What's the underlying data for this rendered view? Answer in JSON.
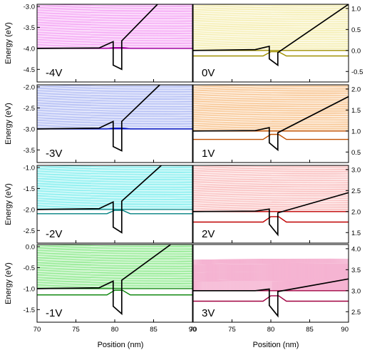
{
  "chart_data": {
    "type": "line",
    "layout": "4 rows x 2 columns, shared x axis",
    "xlabel": "Position (nm)",
    "ylabel": "Energy (eV)",
    "xlim": [
      70,
      90
    ],
    "x_ticks": [
      70,
      75,
      80,
      85,
      90
    ],
    "x_tick_labels": [
      "70",
      "75",
      "80",
      "85",
      "90"
    ],
    "grid": false,
    "panels": [
      {
        "label": "-4V",
        "voltage": -4,
        "ylim": [
          -4.8,
          -2.95
        ],
        "y_ticks": [
          -3.0,
          -3.5,
          -4.0,
          -4.5
        ],
        "y_tick_labels": [
          "-3.0",
          "-3.5",
          "-4.0",
          "-4.5"
        ],
        "fill_color": "#f07ef0",
        "lower_color": "#a000a0",
        "fermi_level": -4.0,
        "ladder_top": -2.95,
        "conduction_band": [
          [
            70,
            -4.0
          ],
          [
            78,
            -3.99
          ],
          [
            79.8,
            -3.84
          ],
          [
            79.8,
            -4.4
          ],
          [
            80.9,
            -4.5
          ],
          [
            80.9,
            -3.82
          ],
          [
            85.5,
            -2.95
          ]
        ],
        "lower_band": [
          [
            70,
            -4.0
          ],
          [
            79,
            -4.0
          ],
          [
            80,
            -3.98
          ],
          [
            81,
            -3.98
          ],
          [
            82,
            -4.0
          ],
          [
            90,
            -4.0
          ]
        ]
      },
      {
        "label": "-3V",
        "voltage": -3,
        "ylim": [
          -3.8,
          -1.95
        ],
        "y_ticks": [
          -2.0,
          -2.5,
          -3.0,
          -3.5
        ],
        "y_tick_labels": [
          "-2.0",
          "-2.5",
          "-3.0",
          "-3.5"
        ],
        "fill_color": "#8f9ff0",
        "lower_color": "#0010c0",
        "fermi_level": -3.0,
        "ladder_top": -1.95,
        "conduction_band": [
          [
            70,
            -3.0
          ],
          [
            78,
            -2.98
          ],
          [
            79.8,
            -2.82
          ],
          [
            79.8,
            -3.42
          ],
          [
            80.9,
            -3.52
          ],
          [
            80.9,
            -2.82
          ],
          [
            85.8,
            -1.95
          ]
        ],
        "lower_band": [
          [
            70,
            -3.0
          ],
          [
            79,
            -3.0
          ],
          [
            80,
            -2.98
          ],
          [
            81,
            -2.98
          ],
          [
            82,
            -3.0
          ],
          [
            90,
            -3.0
          ]
        ]
      },
      {
        "label": "-2V",
        "voltage": -2,
        "ylim": [
          -2.8,
          -0.95
        ],
        "y_ticks": [
          -1.0,
          -1.5,
          -2.0,
          -2.5
        ],
        "y_tick_labels": [
          "-1.0",
          "-1.5",
          "-2.0",
          "-2.5"
        ],
        "fill_color": "#4fe8e8",
        "lower_color": "#008080",
        "fermi_level": -2.0,
        "ladder_top": -0.95,
        "conduction_band": [
          [
            70,
            -2.0
          ],
          [
            78,
            -1.98
          ],
          [
            79.8,
            -1.82
          ],
          [
            79.8,
            -2.42
          ],
          [
            80.9,
            -2.55
          ],
          [
            80.9,
            -1.8
          ],
          [
            86.0,
            -0.95
          ]
        ],
        "lower_band": [
          [
            70,
            -2.1
          ],
          [
            79,
            -2.1
          ],
          [
            80,
            -2.02
          ],
          [
            81,
            -2.02
          ],
          [
            82,
            -2.1
          ],
          [
            90,
            -2.1
          ]
        ]
      },
      {
        "label": "-1V",
        "voltage": -1,
        "ylim": [
          -1.8,
          0.05
        ],
        "y_ticks": [
          0.0,
          -0.5,
          -1.0,
          -1.5
        ],
        "y_tick_labels": [
          "0.0",
          "-0.5",
          "-1.0",
          "-1.5"
        ],
        "fill_color": "#5ee05e",
        "lower_color": "#008000",
        "fermi_level": -1.0,
        "ladder_top": 0.05,
        "conduction_band": [
          [
            70,
            -1.0
          ],
          [
            78,
            -0.98
          ],
          [
            79.8,
            -0.82
          ],
          [
            79.8,
            -1.42
          ],
          [
            80.9,
            -1.6
          ],
          [
            80.9,
            -0.8
          ],
          [
            87.2,
            0.05
          ]
        ],
        "lower_band": [
          [
            70,
            -1.15
          ],
          [
            79,
            -1.15
          ],
          [
            80,
            -1.04
          ],
          [
            81,
            -1.04
          ],
          [
            82,
            -1.15
          ],
          [
            90,
            -1.15
          ]
        ]
      },
      {
        "label": "0V",
        "voltage": 0,
        "ylim": [
          -0.75,
          1.1
        ],
        "y_ticks": [
          1.0,
          0.5,
          0.0,
          -0.5
        ],
        "y_tick_labels": [
          "1.0",
          "0.5",
          "0.0",
          "-0.5"
        ],
        "fill_color": "#f0e58a",
        "lower_color": "#a09000",
        "fermi_level": 0.0,
        "ladder_top": 1.1,
        "conduction_band": [
          [
            70,
            0.0
          ],
          [
            78,
            0.02
          ],
          [
            79.8,
            0.1
          ],
          [
            79.8,
            -0.2
          ],
          [
            80.9,
            -0.35
          ],
          [
            80.9,
            -0.05
          ],
          [
            90,
            1.1
          ]
        ],
        "lower_band": [
          [
            70,
            -0.13
          ],
          [
            79,
            -0.13
          ],
          [
            80,
            -0.03
          ],
          [
            81,
            -0.03
          ],
          [
            82,
            -0.13
          ],
          [
            90,
            -0.13
          ]
        ]
      },
      {
        "label": "1V",
        "voltage": 1,
        "ylim": [
          0.25,
          2.1
        ],
        "y_ticks": [
          2.0,
          1.5,
          1.0,
          0.5
        ],
        "y_tick_labels": [
          "2.0",
          "1.5",
          "1.0",
          "0.5"
        ],
        "fill_color": "#f5a85a",
        "lower_color": "#c05000",
        "fermi_level": 1.0,
        "ladder_top": 2.1,
        "conduction_band": [
          [
            70,
            1.0
          ],
          [
            78,
            1.01
          ],
          [
            79.8,
            1.08
          ],
          [
            79.8,
            0.72
          ],
          [
            80.9,
            0.55
          ],
          [
            80.9,
            0.96
          ],
          [
            90,
            1.82
          ]
        ],
        "lower_band": [
          [
            70,
            0.8
          ],
          [
            79,
            0.8
          ],
          [
            80,
            0.92
          ],
          [
            81,
            0.92
          ],
          [
            82,
            0.8
          ],
          [
            90,
            0.8
          ]
        ]
      },
      {
        "label": "2V",
        "voltage": 2,
        "ylim": [
          1.25,
          3.1
        ],
        "y_ticks": [
          3.0,
          2.5,
          2.0,
          1.5
        ],
        "y_tick_labels": [
          "3.0",
          "2.5",
          "2.0",
          "1.5"
        ],
        "fill_color": "#f7a0a0",
        "lower_color": "#c00000",
        "fermi_level": 2.0,
        "ladder_top": 3.1,
        "conduction_band": [
          [
            70,
            2.0
          ],
          [
            78,
            2.01
          ],
          [
            79.8,
            2.06
          ],
          [
            79.8,
            1.7
          ],
          [
            80.9,
            1.45
          ],
          [
            80.9,
            1.97
          ],
          [
            90,
            2.45
          ]
        ],
        "lower_band": [
          [
            70,
            1.75
          ],
          [
            79,
            1.75
          ],
          [
            80,
            1.88
          ],
          [
            81,
            1.88
          ],
          [
            82,
            1.75
          ],
          [
            90,
            1.75
          ]
        ]
      },
      {
        "label": "3V",
        "voltage": 3,
        "ylim": [
          2.25,
          4.1
        ],
        "y_ticks": [
          4.0,
          3.5,
          3.0,
          2.5
        ],
        "y_tick_labels": [
          "4.0",
          "3.5",
          "3.0",
          "2.5"
        ],
        "fill_color": "#f08ab8",
        "lower_color": "#a00040",
        "fermi_level": 3.0,
        "ladder_top": 3.75,
        "conduction_band": [
          [
            70,
            3.0
          ],
          [
            78,
            3.0
          ],
          [
            79.8,
            3.04
          ],
          [
            79.8,
            2.65
          ],
          [
            80.9,
            2.4
          ],
          [
            80.9,
            2.98
          ],
          [
            90,
            3.28
          ]
        ],
        "lower_band": [
          [
            70,
            2.75
          ],
          [
            79,
            2.75
          ],
          [
            80,
            2.88
          ],
          [
            81,
            2.88
          ],
          [
            82,
            2.75
          ],
          [
            90,
            2.75
          ]
        ]
      }
    ]
  }
}
